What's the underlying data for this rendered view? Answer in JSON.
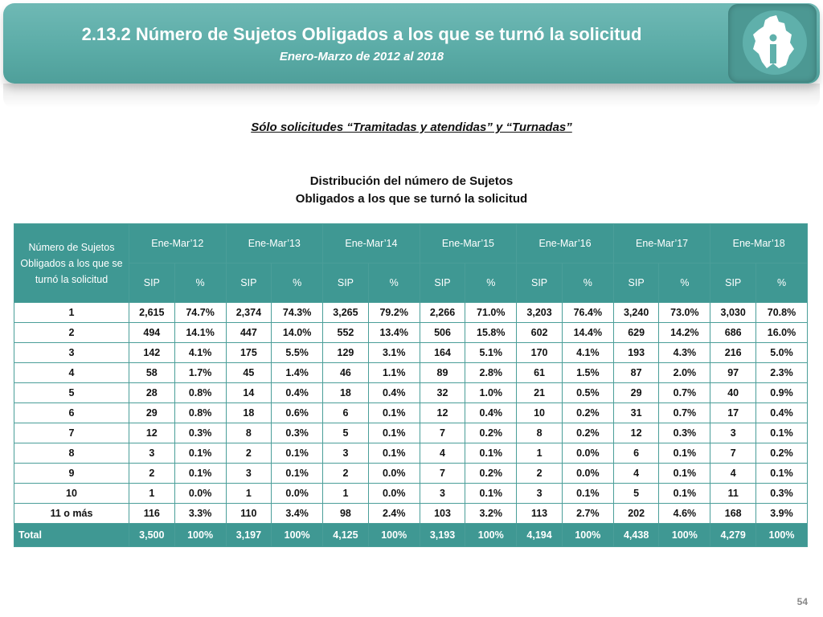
{
  "header": {
    "title": "2.13.2 Número de Sujetos Obligados a los que se turnó la solicitud",
    "subtitle": "Enero-Marzo de 2012 al 2018"
  },
  "filter_note": "Sólo solicitudes “Tramitadas y atendidas” y “Turnadas”",
  "caption": {
    "line1": "Distribución del número de Sujetos",
    "line2": "Obligados a los que se turnó la solicitud"
  },
  "table": {
    "corner_header": "Número de Sujetos Obligados a los que se turnó la solicitud",
    "periods": [
      "Ene-Mar’12",
      "Ene-Mar’13",
      "Ene-Mar’14",
      "Ene-Mar’15",
      "Ene-Mar’16",
      "Ene-Mar’17",
      "Ene-Mar’18"
    ],
    "sub_headers": {
      "count": "SIP",
      "pct": "%"
    },
    "rows": [
      {
        "label": "1",
        "cells": [
          "2,615",
          "74.7%",
          "2,374",
          "74.3%",
          "3,265",
          "79.2%",
          "2,266",
          "71.0%",
          "3,203",
          "76.4%",
          "3,240",
          "73.0%",
          "3,030",
          "70.8%"
        ]
      },
      {
        "label": "2",
        "cells": [
          "494",
          "14.1%",
          "447",
          "14.0%",
          "552",
          "13.4%",
          "506",
          "15.8%",
          "602",
          "14.4%",
          "629",
          "14.2%",
          "686",
          "16.0%"
        ]
      },
      {
        "label": "3",
        "cells": [
          "142",
          "4.1%",
          "175",
          "5.5%",
          "129",
          "3.1%",
          "164",
          "5.1%",
          "170",
          "4.1%",
          "193",
          "4.3%",
          "216",
          "5.0%"
        ]
      },
      {
        "label": "4",
        "cells": [
          "58",
          "1.7%",
          "45",
          "1.4%",
          "46",
          "1.1%",
          "89",
          "2.8%",
          "61",
          "1.5%",
          "87",
          "2.0%",
          "97",
          "2.3%"
        ]
      },
      {
        "label": "5",
        "cells": [
          "28",
          "0.8%",
          "14",
          "0.4%",
          "18",
          "0.4%",
          "32",
          "1.0%",
          "21",
          "0.5%",
          "29",
          "0.7%",
          "40",
          "0.9%"
        ]
      },
      {
        "label": "6",
        "cells": [
          "29",
          "0.8%",
          "18",
          "0.6%",
          "6",
          "0.1%",
          "12",
          "0.4%",
          "10",
          "0.2%",
          "31",
          "0.7%",
          "17",
          "0.4%"
        ]
      },
      {
        "label": "7",
        "cells": [
          "12",
          "0.3%",
          "8",
          "0.3%",
          "5",
          "0.1%",
          "7",
          "0.2%",
          "8",
          "0.2%",
          "12",
          "0.3%",
          "3",
          "0.1%"
        ]
      },
      {
        "label": "8",
        "cells": [
          "3",
          "0.1%",
          "2",
          "0.1%",
          "3",
          "0.1%",
          "4",
          "0.1%",
          "1",
          "0.0%",
          "6",
          "0.1%",
          "7",
          "0.2%"
        ]
      },
      {
        "label": "9",
        "cells": [
          "2",
          "0.1%",
          "3",
          "0.1%",
          "2",
          "0.0%",
          "7",
          "0.2%",
          "2",
          "0.0%",
          "4",
          "0.1%",
          "4",
          "0.1%"
        ]
      },
      {
        "label": "10",
        "cells": [
          "1",
          "0.0%",
          "1",
          "0.0%",
          "1",
          "0.0%",
          "3",
          "0.1%",
          "3",
          "0.1%",
          "5",
          "0.1%",
          "11",
          "0.3%"
        ]
      },
      {
        "label": "11 o más",
        "cells": [
          "116",
          "3.3%",
          "110",
          "3.4%",
          "98",
          "2.4%",
          "103",
          "3.2%",
          "113",
          "2.7%",
          "202",
          "4.6%",
          "168",
          "3.9%"
        ]
      }
    ],
    "total": {
      "label": "Total",
      "cells": [
        "3,500",
        "100%",
        "3,197",
        "100%",
        "4,125",
        "100%",
        "3,193",
        "100%",
        "4,194",
        "100%",
        "4,438",
        "100%",
        "4,279",
        "100%"
      ]
    }
  },
  "page_number": "54",
  "colors": {
    "banner": "#5aaba6",
    "table_header": "#3f9893",
    "border": "#4a9e99"
  },
  "icons": {
    "logo": "mexico-city-map-info-logo-icon"
  }
}
